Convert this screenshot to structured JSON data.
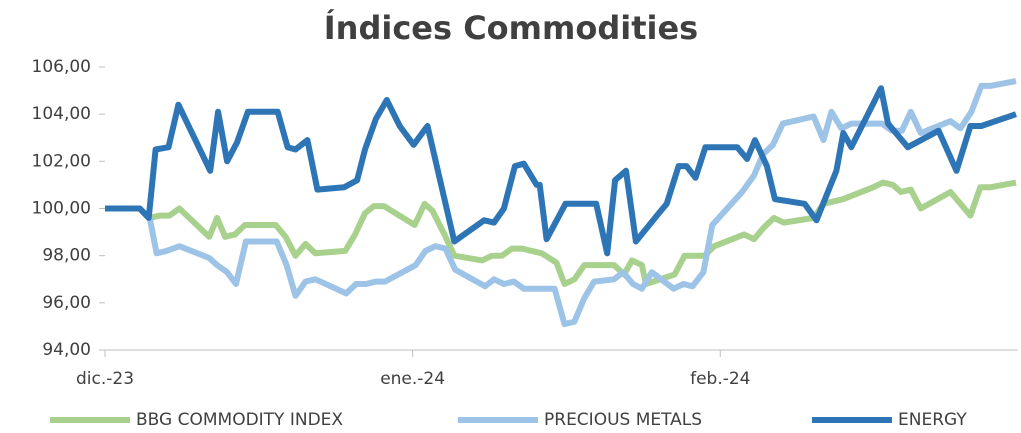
{
  "chart_data": {
    "type": "line",
    "title": "Índices Commodities",
    "xlim": [
      0,
      92
    ],
    "xticks": [
      {
        "value": 0,
        "label": "dic.-23"
      },
      {
        "value": 31,
        "label": "ene.-24"
      },
      {
        "value": 62,
        "label": "feb.-24"
      }
    ],
    "ylim": [
      94,
      106
    ],
    "yticks": [
      {
        "value": 94,
        "label": "94,00"
      },
      {
        "value": 96,
        "label": "96,00"
      },
      {
        "value": 98,
        "label": "98,00"
      },
      {
        "value": 100,
        "label": "100,00"
      },
      {
        "value": 102,
        "label": "102,00"
      },
      {
        "value": 104,
        "label": "104,00"
      },
      {
        "value": 106,
        "label": "106,00"
      }
    ],
    "legend": "bottom",
    "series": [
      {
        "name": "BBG COMMODITY INDEX",
        "color": "#a9d18e",
        "x": [
          0,
          3.5,
          4.5,
          5.5,
          6.5,
          7.5,
          9.5,
          10.5,
          11.3,
          12.1,
          13.1,
          14.1,
          17.2,
          18.2,
          19.2,
          20.2,
          21.2,
          24.2,
          25.2,
          26.2,
          27.1,
          28.1,
          31.2,
          32.2,
          33,
          34.2,
          35.2,
          38,
          39,
          40,
          41,
          42,
          44,
          45.5,
          46.3,
          47.3,
          48.3,
          51.3,
          52.3,
          53.1,
          54.1,
          54.5,
          57.4,
          58.4,
          60.4,
          61.4,
          64.4,
          65.4,
          66.4,
          67.4,
          68.4,
          71.4,
          72.4,
          74.4,
          77.4,
          78.4,
          79.4,
          80.2,
          81.2,
          82.2,
          85.2,
          87.2,
          88.2,
          89.2,
          91.8
        ],
        "values": [
          100,
          100,
          99.6,
          99.7,
          99.7,
          100,
          99.2,
          98.8,
          99.6,
          98.8,
          98.9,
          99.3,
          99.3,
          98.8,
          98,
          98.5,
          98.1,
          98.2,
          98.9,
          99.8,
          100.1,
          100.1,
          99.3,
          100.2,
          99.9,
          98.9,
          98,
          97.8,
          98,
          98,
          98.3,
          98.3,
          98.1,
          97.7,
          96.8,
          97,
          97.6,
          97.6,
          97.2,
          97.8,
          97.6,
          96.8,
          97.2,
          98,
          98,
          98.4,
          98.9,
          98.7,
          99.2,
          99.6,
          99.4,
          99.6,
          100.2,
          100.4,
          100.9,
          101.1,
          101,
          100.7,
          100.8,
          100,
          100.7,
          99.7,
          100.9,
          100.9,
          101.1
        ]
      },
      {
        "name": "PRECIOUS METALS",
        "color": "#9dc3e6",
        "x": [
          0,
          3.5,
          4.5,
          5.2,
          6.2,
          7.5,
          10.5,
          11.3,
          12.3,
          13.2,
          14.2,
          17.3,
          18.3,
          19.2,
          20.2,
          21.2,
          24.3,
          25.3,
          26.3,
          27.3,
          28.2,
          31.3,
          32.3,
          33.3,
          34.3,
          35.3,
          38.3,
          39.2,
          40.2,
          41.2,
          42.2,
          45.3,
          46.3,
          47.3,
          48.3,
          49.3,
          51.3,
          52.2,
          53.2,
          54.1,
          55.1,
          57.3,
          58.3,
          59.2,
          60.3,
          61.2,
          64.2,
          65.4,
          66.3,
          67.3,
          68.3,
          71.4,
          72.4,
          73.2,
          74.2,
          75.2,
          78.3,
          79.3,
          80.3,
          81.2,
          82.2,
          85.2,
          86.2,
          87.3,
          88.3,
          89.2,
          91.8
        ],
        "values": [
          100,
          100,
          99.6,
          98.1,
          98.2,
          98.4,
          97.9,
          97.6,
          97.3,
          96.8,
          98.6,
          98.6,
          97.6,
          96.3,
          96.9,
          97,
          96.4,
          96.8,
          96.8,
          96.9,
          96.9,
          97.6,
          98.2,
          98.4,
          98.3,
          97.4,
          96.7,
          97,
          96.8,
          96.9,
          96.6,
          96.6,
          95.1,
          95.2,
          96.2,
          96.9,
          97,
          97.3,
          96.8,
          96.6,
          97.3,
          96.6,
          96.8,
          96.7,
          97.3,
          99.3,
          100.7,
          101.4,
          102.3,
          102.7,
          103.6,
          103.9,
          102.9,
          104.1,
          103.4,
          103.6,
          103.6,
          103.3,
          103.3,
          104.1,
          103.2,
          103.7,
          103.4,
          104.1,
          105.2,
          105.2,
          105.4
        ]
      },
      {
        "name": "ENERGY",
        "color": "#2e75b6",
        "x": [
          0,
          3.5,
          4.4,
          5.1,
          6.4,
          7.4,
          10.6,
          11.4,
          12.3,
          13.3,
          14.4,
          17.4,
          18.4,
          19.2,
          20.4,
          21.4,
          24.1,
          25.4,
          26.2,
          27.3,
          28.4,
          29.7,
          31.1,
          32.5,
          35.2,
          38.2,
          39.2,
          40.2,
          41.3,
          42.2,
          43.5,
          43.8,
          44.5,
          46.4,
          49.5,
          50.6,
          51.4,
          52.5,
          53.5,
          55.8,
          56.6,
          57.8,
          58.6,
          59.5,
          60.5,
          63.7,
          64.7,
          65.5,
          66.7,
          67.5,
          70.5,
          71.7,
          73.7,
          74.4,
          75.2,
          78.2,
          78.9,
          80.9,
          84,
          85.8,
          87.2,
          88.3,
          91.8
        ],
        "values": [
          100,
          100,
          99.6,
          102.5,
          102.6,
          104.4,
          101.6,
          104.1,
          102,
          102.8,
          104.1,
          104.1,
          102.6,
          102.5,
          102.9,
          100.8,
          100.9,
          101.2,
          102.5,
          103.8,
          104.6,
          103.5,
          102.7,
          103.5,
          98.6,
          99.5,
          99.4,
          100,
          101.8,
          101.9,
          101,
          101,
          98.7,
          100.2,
          100.2,
          98.1,
          101.2,
          101.6,
          98.6,
          99.8,
          100.2,
          101.8,
          101.8,
          101.3,
          102.6,
          102.6,
          102.1,
          102.9,
          101.8,
          100.4,
          100.2,
          99.5,
          101.6,
          103.2,
          102.6,
          105.1,
          103.6,
          102.6,
          103.3,
          101.6,
          103.5,
          103.5,
          104
        ]
      }
    ]
  }
}
